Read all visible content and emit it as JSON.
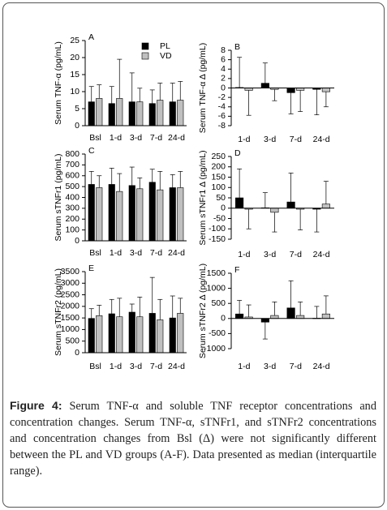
{
  "chart_data": [
    {
      "type": "bar",
      "label": "A",
      "y_label": "Serum TNF-α (pg/mL)",
      "categories": [
        "Bsl",
        "1-d",
        "3-d",
        "7-d",
        "24-d"
      ],
      "series": [
        {
          "name": "PL",
          "color": "#000000",
          "values": [
            7,
            6.5,
            7,
            6.5,
            7
          ],
          "whisker": [
            11.5,
            11.5,
            15.5,
            10.5,
            12.5
          ]
        },
        {
          "name": "VD",
          "color": "#c0c0c0",
          "values": [
            8,
            8,
            7,
            7.5,
            7.5
          ],
          "whisker": [
            12,
            19.5,
            11,
            12.5,
            13
          ]
        }
      ],
      "ylim": [
        0,
        25
      ],
      "yticks": [
        0,
        5,
        10,
        15,
        20,
        25
      ],
      "legend": "upper right"
    },
    {
      "type": "bar",
      "label": "B",
      "y_label": "Serum TNF-α Δ (pg/mL)",
      "categories": [
        "1-d",
        "3-d",
        "7-d",
        "24-d"
      ],
      "series": [
        {
          "color": "#000000",
          "values": [
            0.1,
            1,
            -1,
            -0.3
          ],
          "whisker": [
            6.5,
            5.3,
            -5.5,
            -5.7
          ]
        },
        {
          "color": "#c0c0c0",
          "values": [
            -0.5,
            -0.3,
            -0.5,
            -0.8
          ],
          "whisker": [
            -5.8,
            -2.7,
            -5,
            -4
          ]
        }
      ],
      "ylim": [
        -8,
        8
      ],
      "yticks": [
        -8,
        -6,
        -4,
        -2,
        0,
        2,
        4,
        6,
        8
      ]
    },
    {
      "type": "bar",
      "label": "C",
      "y_label": "Serum sTNFr1 (pg/mL)",
      "categories": [
        "Bsl",
        "1-d",
        "3-d",
        "7-d",
        "24-d"
      ],
      "series": [
        {
          "color": "#000000",
          "values": [
            520,
            520,
            510,
            540,
            490
          ],
          "whisker": [
            640,
            670,
            680,
            660,
            610
          ]
        },
        {
          "color": "#c0c0c0",
          "values": [
            490,
            455,
            480,
            470,
            490
          ],
          "whisker": [
            600,
            620,
            580,
            640,
            640
          ]
        }
      ],
      "ylim": [
        0,
        800
      ],
      "yticks": [
        0,
        100,
        200,
        300,
        400,
        500,
        600,
        700,
        800
      ]
    },
    {
      "type": "bar",
      "label": "D",
      "y_label": "Serum sTNFr1 Δ (pg/mL)",
      "categories": [
        "1-d",
        "3-d",
        "7-d",
        "24-d"
      ],
      "series": [
        {
          "color": "#000000",
          "values": [
            50,
            2,
            30,
            -5
          ],
          "whisker": [
            190,
            75,
            170,
            -115
          ]
        },
        {
          "color": "#c0c0c0",
          "values": [
            -5,
            -20,
            -5,
            20
          ],
          "whisker": [
            -100,
            -115,
            -105,
            130
          ]
        }
      ],
      "ylim": [
        -150,
        250
      ],
      "yticks": [
        -150,
        -100,
        -50,
        0,
        50,
        100,
        150,
        200,
        250
      ]
    },
    {
      "type": "bar",
      "label": "E",
      "y_label": "Serum sTNFr2 (pg/mL)",
      "categories": [
        "Bsl",
        "1-d",
        "3-d",
        "7-d",
        "24-d"
      ],
      "series": [
        {
          "color": "#000000",
          "values": [
            1480,
            1680,
            1750,
            1700,
            1500
          ],
          "whisker": [
            1900,
            2300,
            2100,
            3250,
            2450
          ]
        },
        {
          "color": "#c0c0c0",
          "values": [
            1600,
            1550,
            1550,
            1420,
            1700
          ],
          "whisker": [
            2050,
            2350,
            2400,
            2300,
            2350
          ]
        }
      ],
      "ylim": [
        0,
        3500
      ],
      "yticks": [
        0,
        500,
        1000,
        1500,
        2000,
        2500,
        3000,
        3500
      ]
    },
    {
      "type": "bar",
      "label": "F",
      "y_label": "Serum sTNFr2 Δ (pg/mL)",
      "categories": [
        "1-d",
        "3-d",
        "7-d",
        "24-d"
      ],
      "series": [
        {
          "color": "#000000",
          "values": [
            150,
            -120,
            350,
            10
          ],
          "whisker": [
            600,
            -680,
            1250,
            400
          ]
        },
        {
          "color": "#c0c0c0",
          "values": [
            50,
            100,
            100,
            150
          ],
          "whisker": [
            450,
            550,
            550,
            750
          ]
        }
      ],
      "ylim": [
        -1000,
        1500
      ],
      "yticks": [
        -1000,
        -500,
        0,
        500,
        1000,
        1500
      ]
    }
  ],
  "caption": {
    "label": "Figure 4:",
    "text": "Serum TNF-α and soluble TNF receptor concentrations and concentration changes. Serum TNF-α, sTNFr1, and sTNFr2 concentrations and concentration changes from Bsl (Δ) were not significantly different between the PL and VD groups (A-F). Data presented as median (interquartile range)."
  }
}
